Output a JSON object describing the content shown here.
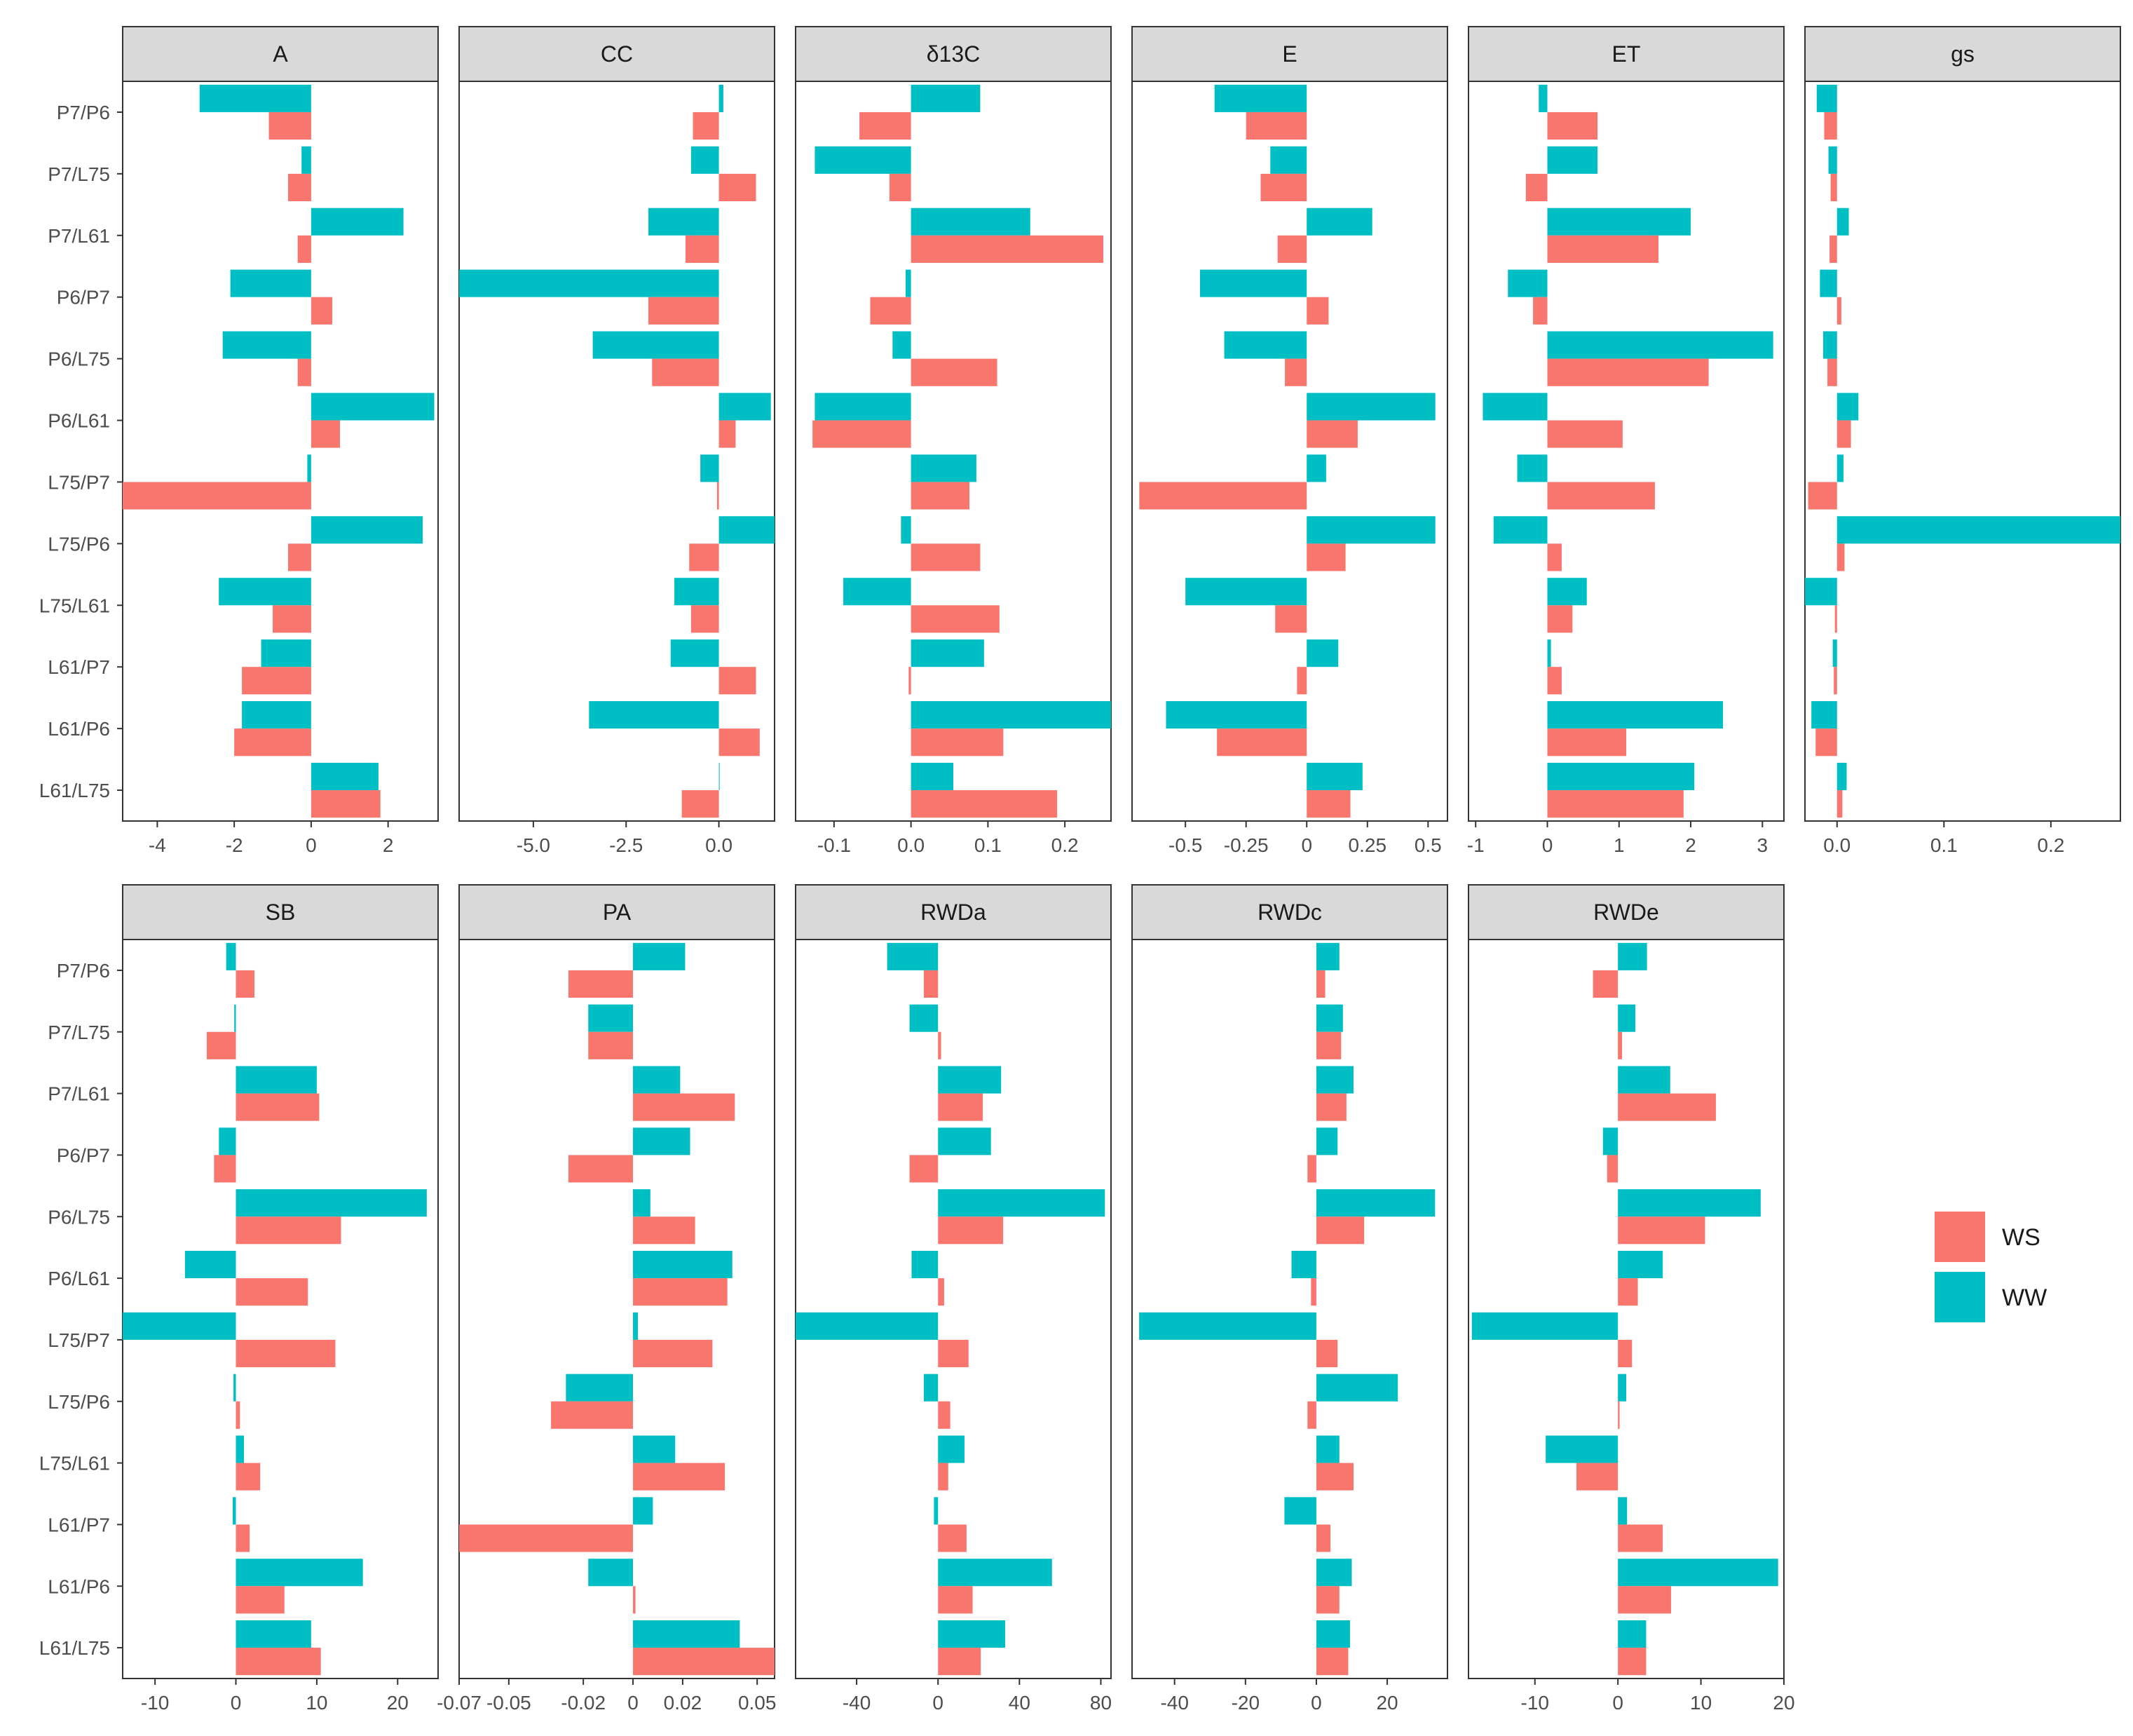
{
  "colors": {
    "WS": "#F8766D",
    "WW": "#00BFC4"
  },
  "chart_data": {
    "type": "bar",
    "orientation": "horizontal",
    "categories": [
      "P7/P6",
      "P7/L75",
      "P7/L61",
      "P6/P7",
      "P6/L75",
      "P6/L61",
      "L75/P7",
      "L75/P6",
      "L75/L61",
      "L61/P7",
      "L61/P6",
      "L61/L75"
    ],
    "legend": [
      "WS",
      "WW"
    ],
    "legend_position": "right",
    "facets": [
      {
        "title": "A",
        "xlim": [
          -4.9,
          3.3
        ],
        "ticks": [
          -4,
          -2,
          0,
          2
        ],
        "tick_labels": [
          "-4",
          "-2",
          "0",
          "2"
        ],
        "series": [
          {
            "name": "WS",
            "values": [
              -1.1,
              -0.6,
              -0.35,
              0.55,
              -0.35,
              0.75,
              -4.9,
              -0.6,
              -1.0,
              -1.8,
              -2.0,
              1.8
            ]
          },
          {
            "name": "WW",
            "values": [
              -2.9,
              -0.25,
              2.4,
              -2.1,
              -2.3,
              3.2,
              -0.1,
              2.9,
              -2.4,
              -1.3,
              -1.8,
              1.75
            ]
          }
        ]
      },
      {
        "title": "CC",
        "xlim": [
          -7.0,
          1.5
        ],
        "ticks": [
          -5,
          -2.5,
          0
        ],
        "tick_labels": [
          "-5.0",
          "-2.5",
          "0.0"
        ],
        "series": [
          {
            "name": "WS",
            "values": [
              -0.7,
              1.0,
              -0.9,
              -1.9,
              -1.8,
              0.45,
              -0.05,
              -0.8,
              -0.75,
              1.0,
              1.1,
              -1.0
            ]
          },
          {
            "name": "WW",
            "values": [
              0.12,
              -0.75,
              -1.9,
              -7.0,
              -3.4,
              1.4,
              -0.5,
              1.5,
              -1.2,
              -1.3,
              -3.5,
              0.02
            ]
          }
        ]
      },
      {
        "title": "δ13C",
        "xlim": [
          -0.15,
          0.26
        ],
        "ticks": [
          -0.1,
          0,
          0.1,
          0.2
        ],
        "tick_labels": [
          "-0.1",
          "0.0",
          "0.1",
          "0.2"
        ],
        "series": [
          {
            "name": "WS",
            "values": [
              -0.067,
              -0.028,
              0.25,
              -0.053,
              0.112,
              -0.128,
              0.076,
              0.09,
              0.115,
              -0.003,
              0.12,
              0.19
            ]
          },
          {
            "name": "WW",
            "values": [
              0.09,
              -0.125,
              0.155,
              -0.007,
              -0.024,
              -0.125,
              0.085,
              -0.013,
              -0.088,
              0.095,
              0.26,
              0.055
            ]
          }
        ]
      },
      {
        "title": "E",
        "xlim": [
          -0.72,
          0.58
        ],
        "ticks": [
          -0.5,
          -0.25,
          0,
          0.25,
          0.5
        ],
        "tick_labels": [
          "-0.5",
          "-0.25",
          "0",
          "0.25",
          "0.5"
        ],
        "series": [
          {
            "name": "WS",
            "values": [
              -0.25,
              -0.19,
              -0.12,
              0.09,
              -0.09,
              0.21,
              -0.69,
              0.16,
              -0.13,
              -0.04,
              -0.37,
              0.18
            ]
          },
          {
            "name": "WW",
            "values": [
              -0.38,
              -0.15,
              0.27,
              -0.44,
              -0.34,
              0.53,
              0.08,
              0.53,
              -0.5,
              0.13,
              -0.58,
              0.23
            ]
          }
        ]
      },
      {
        "title": "ET",
        "xlim": [
          -1.1,
          3.3
        ],
        "ticks": [
          -1,
          0,
          1,
          2,
          3
        ],
        "tick_labels": [
          "-1",
          "0",
          "1",
          "2",
          "3"
        ],
        "series": [
          {
            "name": "WS",
            "values": [
              0.7,
              -0.3,
              1.55,
              -0.2,
              2.25,
              1.05,
              1.5,
              0.2,
              0.35,
              0.2,
              1.1,
              1.9
            ]
          },
          {
            "name": "WW",
            "values": [
              -0.12,
              0.7,
              2.0,
              -0.55,
              3.15,
              -0.9,
              -0.42,
              -0.75,
              0.55,
              0.05,
              2.45,
              2.05
            ]
          }
        ]
      },
      {
        "title": "gs",
        "xlim": [
          -0.03,
          0.265
        ],
        "ticks": [
          0,
          0.1,
          0.2
        ],
        "tick_labels": [
          "0.0",
          "0.1",
          "0.2"
        ],
        "series": [
          {
            "name": "WS",
            "values": [
              -0.012,
              -0.006,
              -0.007,
              0.004,
              -0.009,
              0.013,
              -0.027,
              0.007,
              -0.002,
              -0.003,
              -0.02,
              0.005
            ]
          },
          {
            "name": "WW",
            "values": [
              -0.019,
              -0.008,
              0.011,
              -0.016,
              -0.013,
              0.02,
              0.006,
              0.265,
              -0.03,
              -0.004,
              -0.024,
              0.009
            ]
          }
        ]
      },
      {
        "title": "SB",
        "xlim": [
          -14,
          25
        ],
        "ticks": [
          -10,
          0,
          10,
          20
        ],
        "tick_labels": [
          "-10",
          "0",
          "10",
          "20"
        ],
        "series": [
          {
            "name": "WS",
            "values": [
              2.3,
              -3.6,
              10.3,
              -2.7,
              13.0,
              8.9,
              12.3,
              0.5,
              3.0,
              1.7,
              6.0,
              10.5
            ]
          },
          {
            "name": "WW",
            "values": [
              -1.2,
              -0.2,
              10.0,
              -2.1,
              23.6,
              -6.3,
              -14,
              -0.3,
              1.0,
              -0.4,
              15.7,
              9.3
            ]
          }
        ]
      },
      {
        "title": "PA",
        "xlim": [
          -0.07,
          0.057
        ],
        "ticks": [
          -0.07,
          -0.05,
          -0.02,
          0,
          0.02,
          0.05
        ],
        "tick_labels": [
          "-0.07",
          "-0.05",
          "-0.02",
          "0",
          "0.02",
          "0.05"
        ],
        "series": [
          {
            "name": "WS",
            "values": [
              -0.026,
              -0.018,
              0.041,
              -0.026,
              0.025,
              0.038,
              0.032,
              -0.033,
              0.037,
              -0.07,
              0.001,
              0.057
            ]
          },
          {
            "name": "WW",
            "values": [
              0.021,
              -0.018,
              0.019,
              0.023,
              0.007,
              0.04,
              0.002,
              -0.027,
              0.017,
              0.008,
              -0.018,
              0.043
            ]
          }
        ]
      },
      {
        "title": "RWDa",
        "xlim": [
          -70,
          85
        ],
        "ticks": [
          -40,
          0,
          40,
          80
        ],
        "tick_labels": [
          "-40",
          "0",
          "40",
          "80"
        ],
        "series": [
          {
            "name": "WS",
            "values": [
              -7,
              1.5,
              22,
              -14,
              32,
              3,
              15,
              6,
              5,
              14,
              17,
              21
            ]
          },
          {
            "name": "WW",
            "values": [
              -25,
              -14,
              31,
              26,
              82,
              -13,
              -70,
              -7,
              13,
              -2,
              56,
              33
            ]
          }
        ]
      },
      {
        "title": "RWDc",
        "xlim": [
          -52,
          37
        ],
        "ticks": [
          -40,
          -20,
          0,
          20
        ],
        "tick_labels": [
          "-40",
          "-20",
          "0",
          "20"
        ],
        "series": [
          {
            "name": "WS",
            "values": [
              2.5,
              7,
              8.5,
              -2.5,
              13.5,
              -1.5,
              6,
              -2.5,
              10.5,
              4,
              6.5,
              9
            ]
          },
          {
            "name": "WW",
            "values": [
              6.5,
              7.5,
              10.5,
              6,
              33.5,
              -7,
              -50,
              23,
              6.5,
              -9,
              10,
              9.5
            ]
          }
        ]
      },
      {
        "title": "RWDe",
        "xlim": [
          -18,
          20
        ],
        "ticks": [
          -10,
          0,
          10,
          20
        ],
        "tick_labels": [
          "-10",
          "0",
          "10",
          "20"
        ],
        "series": [
          {
            "name": "WS",
            "values": [
              -3,
              0.5,
              11.8,
              -1.3,
              10.5,
              2.4,
              1.7,
              0.2,
              -5,
              5.4,
              6.4,
              3.4
            ]
          },
          {
            "name": "WW",
            "values": [
              3.5,
              2.1,
              6.3,
              -1.8,
              17.2,
              5.4,
              -17.6,
              1,
              -8.7,
              1.1,
              19.3,
              3.4
            ]
          }
        ]
      }
    ]
  }
}
